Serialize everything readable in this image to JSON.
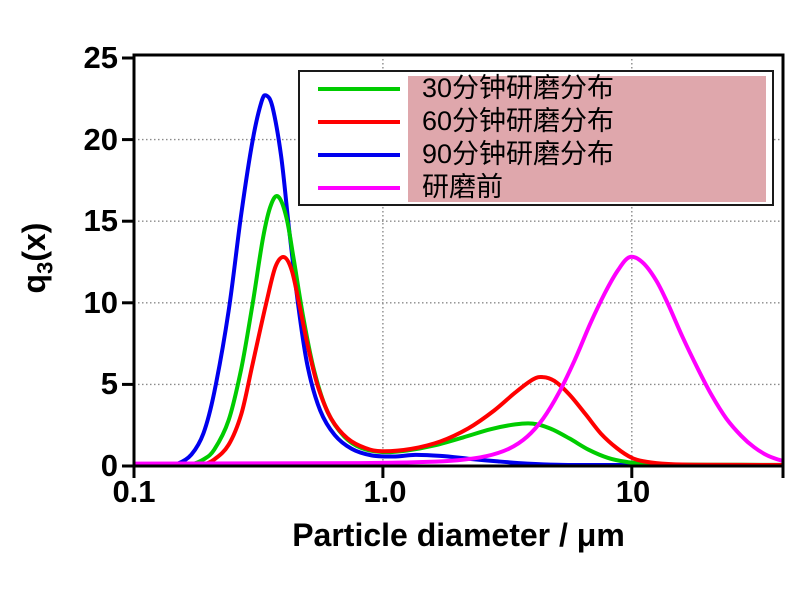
{
  "chart_data": {
    "type": "line",
    "title": "",
    "xlabel": "Particle diameter / μm",
    "ylabel": "q3(x)",
    "ylabel_parts": {
      "pre": "q",
      "sub": "3",
      "post": "(x)"
    },
    "xscale": "log",
    "xlim": [
      0.1,
      40.5
    ],
    "ylim": [
      0,
      25
    ],
    "xticks": [
      "0.1",
      "1.0",
      "10"
    ],
    "yticks": [
      "0",
      "5",
      "10",
      "15",
      "20",
      "25"
    ],
    "grid": {
      "shown": true,
      "style": "dotted",
      "color": "#8a8a8a",
      "x_values": [
        1.0,
        10
      ],
      "y_values": [
        5,
        10,
        15,
        20
      ]
    },
    "axis_color": "#000000",
    "background": "#ffffff",
    "legend": {
      "position": "top-center",
      "border_color": "#1a1a1a",
      "highlight_color": "#dfa7ac"
    },
    "draw_order": [
      2,
      0,
      1,
      3
    ],
    "series": [
      {
        "name": "30分钟研磨分布",
        "color": "#00cc00",
        "peaks": [
          {
            "x": 0.38,
            "y": 16.5
          },
          {
            "x": 4.0,
            "y": 2.6
          }
        ],
        "points": [
          [
            0.15,
            0
          ],
          [
            0.17,
            0.1
          ],
          [
            0.19,
            0.4
          ],
          [
            0.21,
            1.0
          ],
          [
            0.24,
            2.8
          ],
          [
            0.27,
            6.0
          ],
          [
            0.3,
            10.0
          ],
          [
            0.33,
            14.0
          ],
          [
            0.355,
            16.0
          ],
          [
            0.38,
            16.5
          ],
          [
            0.41,
            15.2
          ],
          [
            0.44,
            12.5
          ],
          [
            0.48,
            9.0
          ],
          [
            0.53,
            5.8
          ],
          [
            0.6,
            3.3
          ],
          [
            0.7,
            1.8
          ],
          [
            0.82,
            1.1
          ],
          [
            1.0,
            0.85
          ],
          [
            1.25,
            0.95
          ],
          [
            1.6,
            1.25
          ],
          [
            2.1,
            1.75
          ],
          [
            2.7,
            2.25
          ],
          [
            3.4,
            2.55
          ],
          [
            4.0,
            2.6
          ],
          [
            4.7,
            2.3
          ],
          [
            5.6,
            1.7
          ],
          [
            6.7,
            1.0
          ],
          [
            8.0,
            0.5
          ],
          [
            9.5,
            0.25
          ],
          [
            11,
            0.15
          ],
          [
            14,
            0.1
          ],
          [
            20,
            0.08
          ],
          [
            40,
            0.07
          ]
        ]
      },
      {
        "name": "60分钟研磨分布",
        "color": "#ff0000",
        "peaks": [
          {
            "x": 0.4,
            "y": 12.8
          },
          {
            "x": 4.3,
            "y": 5.4
          }
        ],
        "points": [
          [
            0.17,
            0
          ],
          [
            0.19,
            0.1
          ],
          [
            0.21,
            0.4
          ],
          [
            0.24,
            1.3
          ],
          [
            0.27,
            3.2
          ],
          [
            0.3,
            6.3
          ],
          [
            0.34,
            10.0
          ],
          [
            0.37,
            12.2
          ],
          [
            0.4,
            12.8
          ],
          [
            0.43,
            12.0
          ],
          [
            0.46,
            10.0
          ],
          [
            0.5,
            7.3
          ],
          [
            0.55,
            4.8
          ],
          [
            0.62,
            2.9
          ],
          [
            0.72,
            1.7
          ],
          [
            0.85,
            1.1
          ],
          [
            1.0,
            0.9
          ],
          [
            1.3,
            1.05
          ],
          [
            1.7,
            1.5
          ],
          [
            2.2,
            2.3
          ],
          [
            2.8,
            3.4
          ],
          [
            3.4,
            4.5
          ],
          [
            4.0,
            5.3
          ],
          [
            4.4,
            5.45
          ],
          [
            4.9,
            5.2
          ],
          [
            5.6,
            4.4
          ],
          [
            6.5,
            3.2
          ],
          [
            7.5,
            2.0
          ],
          [
            8.7,
            1.1
          ],
          [
            10,
            0.5
          ],
          [
            11.5,
            0.25
          ],
          [
            14,
            0.12
          ],
          [
            18,
            0.08
          ],
          [
            40,
            0.06
          ]
        ]
      },
      {
        "name": "90分钟研磨分布",
        "color": "#0000ee",
        "peaks": [
          {
            "x": 0.34,
            "y": 22.7
          }
        ],
        "points": [
          [
            0.13,
            0
          ],
          [
            0.15,
            0.15
          ],
          [
            0.17,
            0.7
          ],
          [
            0.19,
            2.0
          ],
          [
            0.21,
            4.5
          ],
          [
            0.24,
            9.5
          ],
          [
            0.27,
            15.5
          ],
          [
            0.3,
            20.0
          ],
          [
            0.325,
            22.3
          ],
          [
            0.34,
            22.7
          ],
          [
            0.36,
            22.0
          ],
          [
            0.39,
            19.0
          ],
          [
            0.42,
            14.5
          ],
          [
            0.46,
            9.5
          ],
          [
            0.5,
            6.0
          ],
          [
            0.56,
            3.4
          ],
          [
            0.64,
            1.9
          ],
          [
            0.75,
            1.05
          ],
          [
            0.9,
            0.65
          ],
          [
            1.1,
            0.58
          ],
          [
            1.35,
            0.68
          ],
          [
            1.7,
            0.62
          ],
          [
            2.2,
            0.45
          ],
          [
            2.9,
            0.28
          ],
          [
            3.8,
            0.15
          ],
          [
            5.0,
            0.08
          ],
          [
            7,
            0.05
          ],
          [
            40,
            0.04
          ]
        ]
      },
      {
        "name": "研磨前",
        "color": "#ff00ff",
        "peaks": [
          {
            "x": 9.8,
            "y": 12.8
          }
        ],
        "points": [
          [
            0.1,
            0.15
          ],
          [
            0.8,
            0.18
          ],
          [
            1.5,
            0.25
          ],
          [
            2.0,
            0.35
          ],
          [
            2.6,
            0.6
          ],
          [
            3.2,
            1.05
          ],
          [
            3.8,
            1.8
          ],
          [
            4.4,
            2.9
          ],
          [
            5.1,
            4.5
          ],
          [
            5.9,
            6.5
          ],
          [
            6.8,
            8.7
          ],
          [
            7.8,
            10.6
          ],
          [
            8.8,
            12.0
          ],
          [
            9.8,
            12.8
          ],
          [
            11,
            12.5
          ],
          [
            12.5,
            11.4
          ],
          [
            14,
            9.9
          ],
          [
            16,
            7.9
          ],
          [
            18.5,
            5.9
          ],
          [
            21,
            4.3
          ],
          [
            24,
            2.9
          ],
          [
            27.5,
            1.85
          ],
          [
            31,
            1.15
          ],
          [
            35,
            0.65
          ],
          [
            39,
            0.38
          ],
          [
            41,
            0.3
          ]
        ]
      }
    ]
  }
}
